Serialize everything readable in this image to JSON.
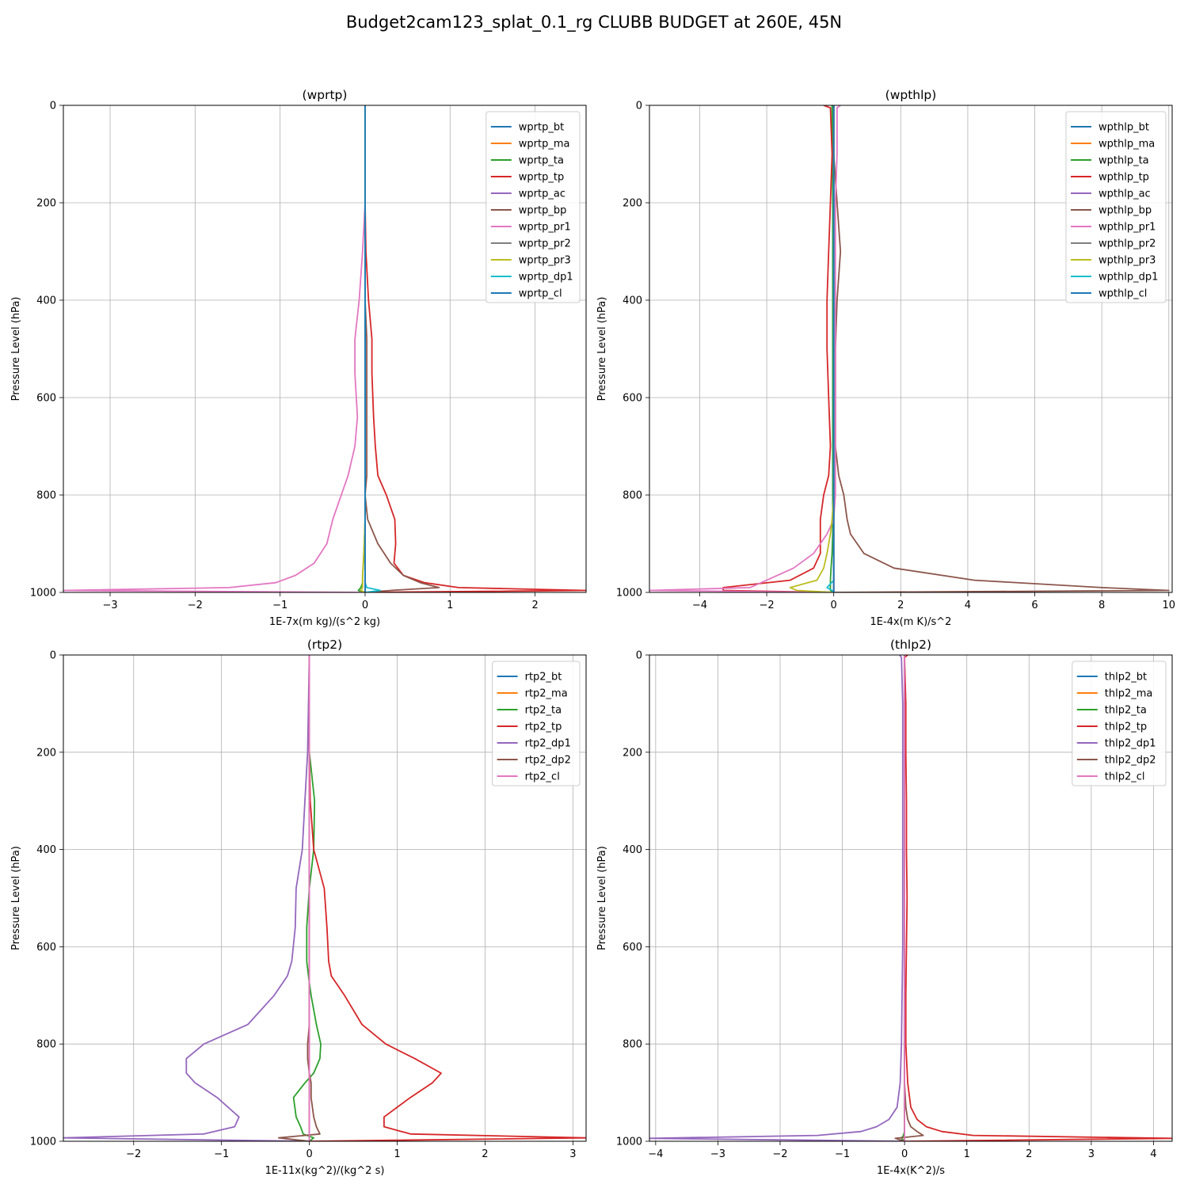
{
  "figure": {
    "title": "Budget2cam123_splat_0.1_rg CLUBB BUDGET at 260E, 45N"
  },
  "colors": [
    "#1f77b4",
    "#ff7f0e",
    "#2ca02c",
    "#d62728",
    "#9467bd",
    "#8c564b",
    "#e377c2",
    "#7f7f7f",
    "#bcbd22",
    "#17becf",
    "#1f77b4"
  ],
  "chart_data": [
    {
      "type": "line",
      "title": "(wprtp)",
      "xlabel": "1E-7x(m kg)/(s^2 kg)",
      "ylabel": "Pressure Level (hPa)",
      "xlim": [
        -3.55,
        2.6
      ],
      "ylim": [
        1000,
        0
      ],
      "xticks": [
        -3,
        -2,
        -1,
        0,
        1,
        2
      ],
      "yticks": [
        0,
        200,
        400,
        600,
        800,
        1000
      ],
      "grid": true,
      "legend": "top-right",
      "p": [
        0,
        100,
        200,
        300,
        400,
        480,
        550,
        640,
        700,
        760,
        800,
        850,
        900,
        940,
        965,
        980,
        990,
        996,
        1000
      ],
      "series": [
        {
          "name": "wprtp_bt",
          "values": [
            0,
            0,
            0,
            0,
            0,
            0,
            0,
            0,
            0,
            0,
            0,
            0,
            0,
            0,
            0,
            0,
            0,
            0,
            0
          ]
        },
        {
          "name": "wprtp_ma",
          "values": [
            0,
            0,
            0,
            0,
            0,
            0,
            0,
            0,
            0,
            0,
            0,
            0,
            0,
            0,
            0,
            0,
            0,
            0,
            0
          ]
        },
        {
          "name": "wprtp_ta",
          "values": [
            0,
            0,
            0,
            0,
            0,
            0,
            0,
            0,
            0,
            0,
            0,
            0,
            -0.01,
            -0.02,
            -0.03,
            -0.03,
            -0.05,
            -0.08,
            0
          ]
        },
        {
          "name": "wprtp_tp",
          "values": [
            0,
            0,
            0,
            0.01,
            0.04,
            0.08,
            0.08,
            0.1,
            0.12,
            0.15,
            0.25,
            0.35,
            0.36,
            0.34,
            0.45,
            0.7,
            1.1,
            2.6,
            0
          ]
        },
        {
          "name": "wprtp_ac",
          "values": [
            0,
            0,
            0,
            0,
            0,
            0,
            0,
            0,
            0,
            0,
            0,
            0,
            0,
            0,
            0,
            0,
            0,
            0,
            0
          ]
        },
        {
          "name": "wprtp_bp",
          "values": [
            0,
            0,
            0,
            0,
            0,
            0.02,
            0.02,
            0.02,
            0.02,
            0.02,
            0,
            0.03,
            0.15,
            0.3,
            0.45,
            0.65,
            0.87,
            0.3,
            0
          ]
        },
        {
          "name": "wprtp_pr1",
          "values": [
            0,
            0,
            0,
            -0.03,
            -0.07,
            -0.12,
            -0.12,
            -0.09,
            -0.12,
            -0.2,
            -0.28,
            -0.38,
            -0.45,
            -0.6,
            -0.82,
            -1.05,
            -1.6,
            -3.55,
            0
          ]
        },
        {
          "name": "wprtp_pr2",
          "values": [
            0,
            0,
            0,
            0,
            0,
            0,
            0,
            0,
            0,
            0,
            0,
            0,
            0,
            0,
            0,
            0,
            0,
            0,
            0
          ]
        },
        {
          "name": "wprtp_pr3",
          "values": [
            0,
            0,
            0,
            0,
            0,
            0,
            0,
            0,
            0,
            0,
            0,
            0,
            -0.01,
            -0.02,
            -0.03,
            -0.03,
            -0.03,
            -0.05,
            0
          ]
        },
        {
          "name": "wprtp_dp1",
          "values": [
            0,
            0,
            0,
            0,
            0,
            0,
            0,
            0,
            0,
            0,
            0,
            0,
            0,
            0,
            0,
            0,
            0.02,
            0.18,
            0
          ]
        },
        {
          "name": "wprtp_cl",
          "values": [
            0,
            0,
            0,
            0,
            0,
            0,
            0,
            0,
            0,
            0,
            0,
            0,
            0,
            0,
            0,
            0,
            0,
            0,
            0
          ]
        }
      ]
    },
    {
      "type": "line",
      "title": "(wpthlp)",
      "xlabel": "1E-4x(m K)/s^2",
      "ylabel": "Pressure Level (hPa)",
      "xlim": [
        -5.5,
        10.1
      ],
      "ylim": [
        1000,
        0
      ],
      "xticks": [
        -4,
        -2,
        0,
        2,
        4,
        6,
        8,
        10
      ],
      "yticks": [
        0,
        200,
        400,
        600,
        800,
        1000
      ],
      "grid": true,
      "legend": "top-right",
      "p": [
        0,
        5,
        100,
        200,
        300,
        400,
        500,
        600,
        700,
        760,
        800,
        850,
        880,
        920,
        950,
        975,
        990,
        996,
        1000
      ],
      "series": [
        {
          "name": "wpthlp_bt",
          "values": [
            0,
            0,
            0,
            0,
            0,
            0,
            0,
            0,
            0,
            0,
            0,
            0,
            0,
            0,
            0,
            0,
            0,
            0,
            0
          ]
        },
        {
          "name": "wpthlp_ma",
          "values": [
            0,
            0,
            0,
            0,
            0,
            0,
            0,
            0,
            0,
            0,
            0,
            0,
            0,
            0,
            0,
            0,
            0,
            0,
            0
          ]
        },
        {
          "name": "wpthlp_ta",
          "values": [
            -0.05,
            -0.05,
            -0.04,
            -0.03,
            -0.03,
            -0.03,
            -0.03,
            -0.03,
            -0.03,
            -0.03,
            -0.03,
            -0.03,
            -0.03,
            -0.05,
            -0.08,
            -0.1,
            -0.1,
            -0.1,
            0
          ]
        },
        {
          "name": "wpthlp_tp",
          "values": [
            -0.3,
            -0.1,
            -0.05,
            -0.1,
            -0.15,
            -0.2,
            -0.2,
            -0.15,
            -0.1,
            -0.15,
            -0.3,
            -0.4,
            -0.4,
            -0.4,
            -0.6,
            -1.3,
            -3.3,
            -3.3,
            0
          ]
        },
        {
          "name": "wpthlp_ac",
          "values": [
            0,
            0,
            0,
            0,
            0,
            0,
            0,
            0,
            0,
            0,
            0,
            0,
            0,
            0,
            0,
            0,
            0,
            0,
            0
          ]
        },
        {
          "name": "wpthlp_bp",
          "values": [
            0,
            0,
            0,
            0.1,
            0.2,
            0.1,
            0.05,
            0.05,
            0.05,
            0.15,
            0.3,
            0.4,
            0.5,
            0.9,
            1.8,
            4.2,
            8,
            10,
            0
          ]
        },
        {
          "name": "wpthlp_pr1",
          "values": [
            0.2,
            0.1,
            0.1,
            0.05,
            0.05,
            0.05,
            0.05,
            0.05,
            0.05,
            0.05,
            0.05,
            0,
            -0.2,
            -0.6,
            -1.2,
            -2,
            -2.5,
            -5.5,
            0
          ]
        },
        {
          "name": "wpthlp_pr2",
          "values": [
            0,
            0,
            0,
            0,
            0,
            0,
            0,
            0,
            0,
            0,
            0,
            0,
            0,
            0,
            0,
            0,
            0,
            0,
            0
          ]
        },
        {
          "name": "wpthlp_pr3",
          "values": [
            0,
            0,
            0,
            0,
            0,
            0,
            0,
            0,
            0,
            0,
            0,
            -0.05,
            -0.1,
            -0.2,
            -0.3,
            -0.5,
            -1.3,
            -1.1,
            0
          ]
        },
        {
          "name": "wpthlp_dp1",
          "values": [
            0,
            0,
            0,
            0,
            0,
            0,
            0,
            0,
            0,
            0,
            0,
            0,
            0,
            0,
            0,
            0,
            -0.2,
            -0.05,
            0
          ]
        },
        {
          "name": "wpthlp_cl",
          "values": [
            0,
            0,
            0,
            0,
            0,
            0,
            0,
            0,
            0,
            0,
            0,
            0,
            0,
            0,
            0,
            0,
            0,
            0,
            0
          ]
        }
      ]
    },
    {
      "type": "line",
      "title": "(rtp2)",
      "xlabel": "1E-11x(kg^2)/(kg^2 s)",
      "ylabel": "Pressure Level (hPa)",
      "xlim": [
        -2.8,
        3.15
      ],
      "ylim": [
        1000,
        0
      ],
      "xticks": [
        -2,
        -1,
        0,
        1,
        2,
        3
      ],
      "yticks": [
        0,
        200,
        400,
        600,
        800,
        1000
      ],
      "grid": true,
      "legend": "top-right",
      "p": [
        0,
        200,
        300,
        400,
        480,
        560,
        630,
        660,
        700,
        760,
        800,
        830,
        860,
        880,
        910,
        950,
        970,
        985,
        993,
        1000
      ],
      "series": [
        {
          "name": "rtp2_bt",
          "values": [
            0,
            0,
            0,
            0,
            0,
            0,
            0,
            0,
            0,
            0,
            0,
            0,
            0,
            0,
            0,
            0,
            0,
            0,
            0,
            0
          ]
        },
        {
          "name": "rtp2_ma",
          "values": [
            0,
            0,
            0,
            0,
            0,
            0,
            0,
            0,
            0,
            0,
            0,
            0,
            0,
            0,
            0,
            0,
            0,
            0,
            0,
            0
          ]
        },
        {
          "name": "rtp2_ta",
          "values": [
            0,
            0,
            0.06,
            0.05,
            0,
            -0.03,
            -0.03,
            -0.01,
            0.02,
            0.08,
            0.13,
            0.12,
            0.05,
            -0.05,
            -0.18,
            -0.15,
            -0.1,
            -0.07,
            0.05,
            0
          ]
        },
        {
          "name": "rtp2_tp",
          "values": [
            0,
            0,
            0.01,
            0.05,
            0.17,
            0.2,
            0.22,
            0.25,
            0.4,
            0.6,
            0.87,
            1.2,
            1.5,
            1.4,
            1.15,
            0.85,
            0.85,
            1.15,
            3.15,
            0
          ]
        },
        {
          "name": "rtp2_dp1",
          "values": [
            0,
            -0.02,
            -0.05,
            -0.08,
            -0.15,
            -0.16,
            -0.2,
            -0.25,
            -0.4,
            -0.7,
            -1.2,
            -1.4,
            -1.4,
            -1.3,
            -1.05,
            -0.8,
            -0.85,
            -1.2,
            -2.8,
            0
          ]
        },
        {
          "name": "rtp2_dp2",
          "values": [
            0,
            0,
            0,
            0,
            0,
            0,
            0,
            0,
            0,
            0,
            -0.02,
            -0.02,
            0,
            0.02,
            0.02,
            0.05,
            0.08,
            0.12,
            -0.35,
            0
          ]
        },
        {
          "name": "rtp2_cl",
          "values": [
            0,
            0,
            0,
            0,
            0,
            0,
            0,
            0,
            0,
            0,
            0,
            0,
            0,
            0,
            0,
            0,
            0,
            0,
            0,
            0
          ]
        }
      ]
    },
    {
      "type": "line",
      "title": "(thlp2)",
      "xlabel": "1E-4x(K^2)/s",
      "ylabel": "Pressure Level (hPa)",
      "xlim": [
        -4.1,
        4.3
      ],
      "ylim": [
        1000,
        0
      ],
      "xticks": [
        -4,
        -3,
        -2,
        -1,
        0,
        1,
        2,
        3,
        4
      ],
      "yticks": [
        0,
        200,
        400,
        600,
        800,
        1000
      ],
      "grid": true,
      "legend": "top-right",
      "p": [
        0,
        5,
        100,
        200,
        300,
        400,
        500,
        600,
        700,
        800,
        880,
        930,
        955,
        970,
        980,
        988,
        994,
        1000
      ],
      "series": [
        {
          "name": "thlp2_bt",
          "values": [
            0,
            0,
            0,
            0,
            0,
            0,
            0,
            0,
            0,
            0,
            0,
            0,
            0,
            0,
            0,
            0,
            0,
            0
          ]
        },
        {
          "name": "thlp2_ma",
          "values": [
            0,
            0,
            0,
            0,
            0,
            0,
            0,
            0,
            0,
            0,
            0,
            0,
            0,
            0,
            0,
            0,
            0,
            0
          ]
        },
        {
          "name": "thlp2_ta",
          "values": [
            0,
            0,
            0,
            0,
            0,
            0,
            0,
            0,
            0,
            0,
            0,
            0,
            0,
            0,
            0,
            -0.02,
            -0.05,
            0
          ]
        },
        {
          "name": "thlp2_tp",
          "values": [
            0.05,
            0,
            0.02,
            0.02,
            0.03,
            0.03,
            0.04,
            0.03,
            0.02,
            0.02,
            0.05,
            0.1,
            0.2,
            0.35,
            0.6,
            1.1,
            4.3,
            0
          ]
        },
        {
          "name": "thlp2_dp1",
          "values": [
            -0.08,
            -0.05,
            -0.03,
            -0.03,
            -0.03,
            -0.03,
            -0.03,
            -0.03,
            -0.04,
            -0.05,
            -0.07,
            -0.12,
            -0.25,
            -0.45,
            -0.7,
            -1.4,
            -4.1,
            0
          ]
        },
        {
          "name": "thlp2_dp2",
          "values": [
            0,
            0,
            0,
            0,
            0,
            0,
            0,
            0,
            0,
            0,
            0,
            0.02,
            0.05,
            0.1,
            0.2,
            0.3,
            -0.15,
            0
          ]
        },
        {
          "name": "thlp2_cl",
          "values": [
            0,
            0,
            0,
            0,
            0,
            0,
            0,
            0,
            0,
            0,
            0,
            0,
            0,
            0,
            0,
            0,
            0,
            0
          ]
        }
      ]
    }
  ]
}
